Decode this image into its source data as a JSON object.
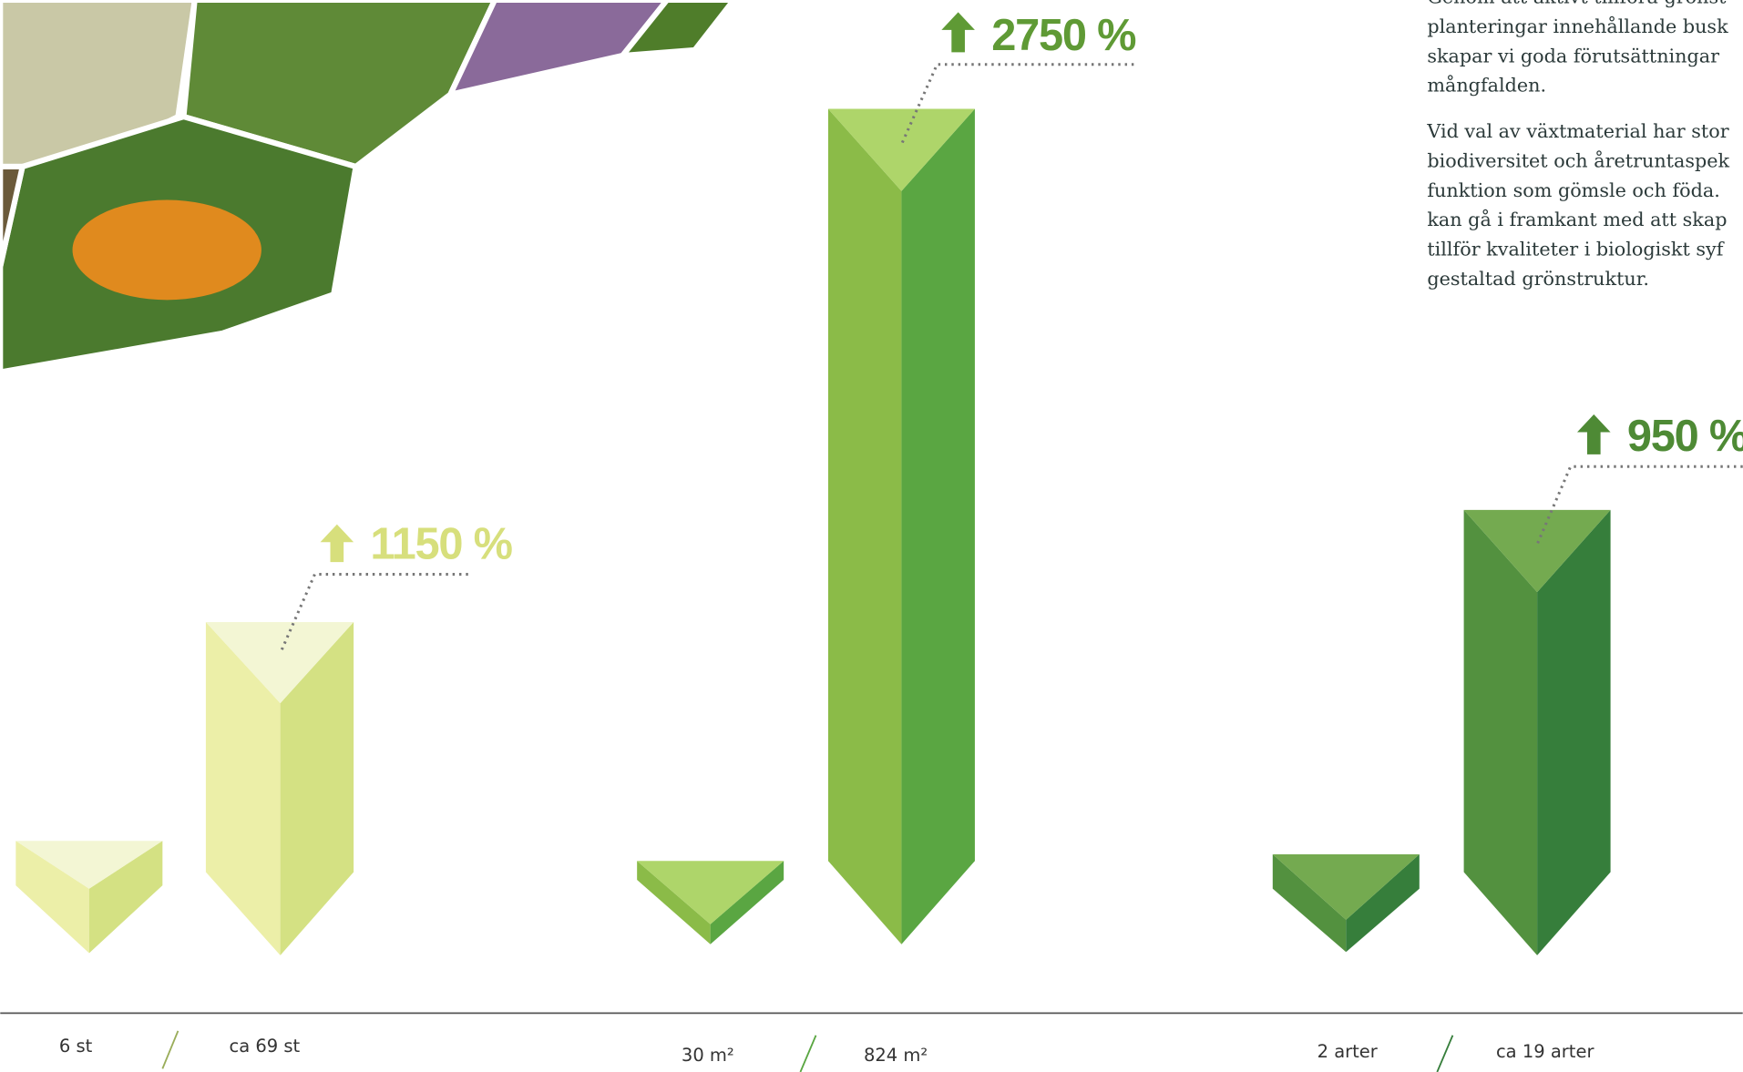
{
  "text": {
    "paragraphs": [
      [
        "Genom att aktivt tillföra grönst",
        "planteringar innehållande busk",
        "skapar vi goda förutsättningar",
        "mångfalden."
      ],
      [
        "Vid val av växtmaterial har stor",
        "biodiversitet och åretruntaspek",
        "funktion som gömsle och föda.",
        "kan gå i framkant med att skap",
        "tillför kvaliteter i biologiskt syf",
        "gestaltad grönstruktur."
      ]
    ]
  },
  "groups": [
    {
      "increase": "1150 %",
      "before": "6 st",
      "after": "ca 69 st"
    },
    {
      "increase": "2750 %",
      "before": "30 m²",
      "after": "824 m²"
    },
    {
      "increase": "950 %",
      "before": "2 arter",
      "after": "ca 19 arter"
    }
  ]
}
